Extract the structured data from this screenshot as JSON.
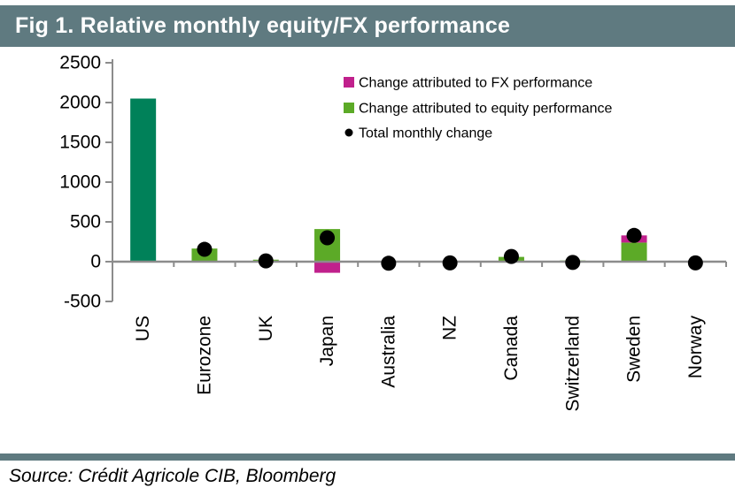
{
  "header": {
    "title": "Fig 1. Relative monthly equity/FX performance",
    "bg_color": "#5f7a80",
    "text_color": "#ffffff"
  },
  "footer": {
    "source": "Source: Crédit Agricole CIB, Bloomberg",
    "divider_color": "#5f7a80"
  },
  "chart_data": {
    "type": "bar",
    "title": "Fig 1. Relative monthly equity/FX performance",
    "categories": [
      "US",
      "Eurozone",
      "UK",
      "Japan",
      "Australia",
      "NZ",
      "Canada",
      "Switzerland",
      "Sweden",
      "Norway"
    ],
    "xlabel": "",
    "ylabel": "",
    "ylim": [
      -500,
      2500
    ],
    "yticks": [
      2500,
      2000,
      1500,
      1000,
      500,
      0,
      -500
    ],
    "grid": false,
    "legend_position": "top-right-inside",
    "axis_color": "#8c8c8c",
    "text_color": "#000000",
    "series": [
      {
        "name": "Change attributed to FX performance",
        "type": "bar",
        "marker": "square",
        "color": "#c0208c",
        "values": [
          0,
          0,
          0,
          -140,
          0,
          0,
          0,
          0,
          90,
          0
        ]
      },
      {
        "name": "Change attributed to equity performance",
        "type": "bar",
        "marker": "square",
        "color": "#5caa27",
        "values": [
          2050,
          165,
          25,
          410,
          0,
          0,
          60,
          15,
          240,
          0
        ]
      },
      {
        "name": "Total monthly change",
        "type": "scatter",
        "marker": "dot",
        "color": "#000000",
        "values": [
          null,
          155,
          10,
          300,
          -20,
          -15,
          65,
          -10,
          330,
          -15
        ]
      }
    ],
    "highlight": {
      "category": "US",
      "color": "#008159"
    }
  }
}
